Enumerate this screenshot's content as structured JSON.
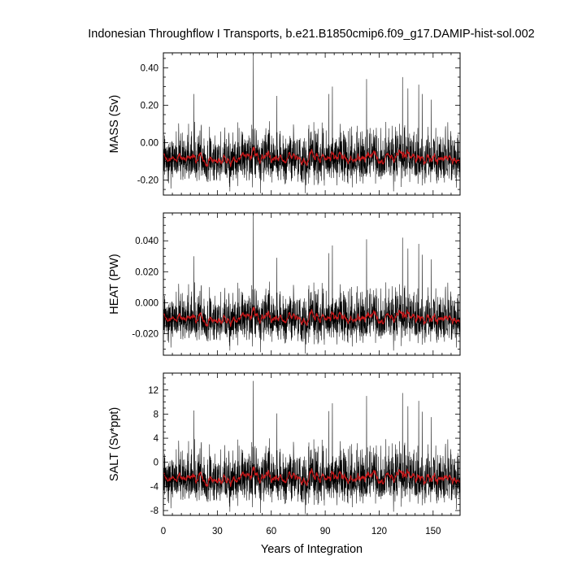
{
  "title": "Indonesian Throughflow I Transports, b.e21.B1850cmip6.f09_g17.DAMIP-hist-sol.002",
  "colors": {
    "raw": "#000000",
    "smoothed": "#e41a1c",
    "frame": "#000000",
    "background": "#ffffff"
  },
  "chart_data": [
    {
      "type": "line",
      "ylabel": "MASS (Sv)",
      "xlabel": "",
      "xlim": [
        0,
        165
      ],
      "ylim": [
        -0.28,
        0.48
      ],
      "y_ticks": [
        -0.2,
        0.0,
        0.2,
        0.4
      ],
      "y_tick_labels": [
        "-0.20",
        "0.00",
        "0.20",
        "0.40"
      ],
      "y_minor_step": 0.05,
      "baseline": -0.09,
      "noise_range": [
        -0.27,
        0.16
      ],
      "peaks": [
        [
          17,
          0.26
        ],
        [
          50,
          0.47
        ],
        [
          63,
          0.25
        ],
        [
          92,
          0.26
        ],
        [
          94,
          0.3
        ],
        [
          113,
          0.34
        ],
        [
          133,
          0.35
        ],
        [
          136,
          0.29
        ],
        [
          142,
          0.31
        ],
        [
          144,
          0.26
        ],
        [
          149,
          0.23
        ]
      ],
      "troughs": [
        [
          37,
          -0.26
        ],
        [
          54,
          -0.27
        ],
        [
          79,
          -0.27
        ],
        [
          128,
          -0.26
        ],
        [
          163,
          -0.24
        ]
      ],
      "series": [
        {
          "kind": "raw",
          "color": "#000000",
          "description_values": "monthly transport"
        },
        {
          "kind": "smoothed",
          "color": "#e41a1c",
          "description_values": "running mean"
        }
      ]
    },
    {
      "type": "line",
      "ylabel": "HEAT (PW)",
      "xlabel": "",
      "xlim": [
        0,
        165
      ],
      "ylim": [
        -0.034,
        0.058
      ],
      "y_ticks": [
        -0.02,
        0.0,
        0.02,
        0.04
      ],
      "y_tick_labels": [
        "-0.020",
        "0.000",
        "0.020",
        "0.040"
      ],
      "y_minor_step": 0.005,
      "baseline": -0.011,
      "noise_range": [
        -0.032,
        0.019
      ],
      "peaks": [
        [
          17,
          0.03
        ],
        [
          50,
          0.057
        ],
        [
          63,
          0.029
        ],
        [
          92,
          0.032
        ],
        [
          94,
          0.037
        ],
        [
          113,
          0.041
        ],
        [
          133,
          0.042
        ],
        [
          136,
          0.035
        ],
        [
          142,
          0.038
        ],
        [
          144,
          0.031
        ],
        [
          149,
          0.028
        ]
      ],
      "troughs": [
        [
          37,
          -0.031
        ],
        [
          54,
          -0.032
        ],
        [
          79,
          -0.033
        ],
        [
          128,
          -0.031
        ],
        [
          163,
          -0.029
        ]
      ],
      "series": [
        {
          "kind": "raw",
          "color": "#000000",
          "description_values": "monthly transport"
        },
        {
          "kind": "smoothed",
          "color": "#e41a1c",
          "description_values": "running mean"
        }
      ]
    },
    {
      "type": "line",
      "ylabel": "SALT (Sv*ppt)",
      "xlabel": "Years of Integration",
      "xlim": [
        0,
        165
      ],
      "ylim": [
        -8.8,
        14.8
      ],
      "y_ticks": [
        -8,
        -4,
        0,
        4,
        8,
        12
      ],
      "y_tick_labels": [
        "-8",
        "-4",
        "0",
        "4",
        "8",
        "12"
      ],
      "y_minor_step": 1,
      "baseline": -2.9,
      "noise_range": [
        -8.4,
        5.5
      ],
      "peaks": [
        [
          17,
          8.6
        ],
        [
          50,
          13.5
        ],
        [
          63,
          8.1
        ],
        [
          92,
          8.5
        ],
        [
          94,
          9.8
        ],
        [
          113,
          11.0
        ],
        [
          133,
          11.5
        ],
        [
          136,
          9.3
        ],
        [
          142,
          10.2
        ],
        [
          144,
          8.4
        ],
        [
          149,
          7.5
        ]
      ],
      "troughs": [
        [
          37,
          -8.2
        ],
        [
          54,
          -8.4
        ],
        [
          79,
          -8.6
        ],
        [
          128,
          -8.2
        ],
        [
          163,
          -7.8
        ]
      ],
      "series": [
        {
          "kind": "raw",
          "color": "#000000",
          "description_values": "monthly transport"
        },
        {
          "kind": "smoothed",
          "color": "#e41a1c",
          "description_values": "running mean"
        }
      ]
    }
  ],
  "x_ticks": [
    0,
    30,
    60,
    90,
    120,
    150
  ],
  "x_tick_labels": [
    "0",
    "30",
    "60",
    "90",
    "120",
    "150"
  ],
  "x_minor_step": 5
}
